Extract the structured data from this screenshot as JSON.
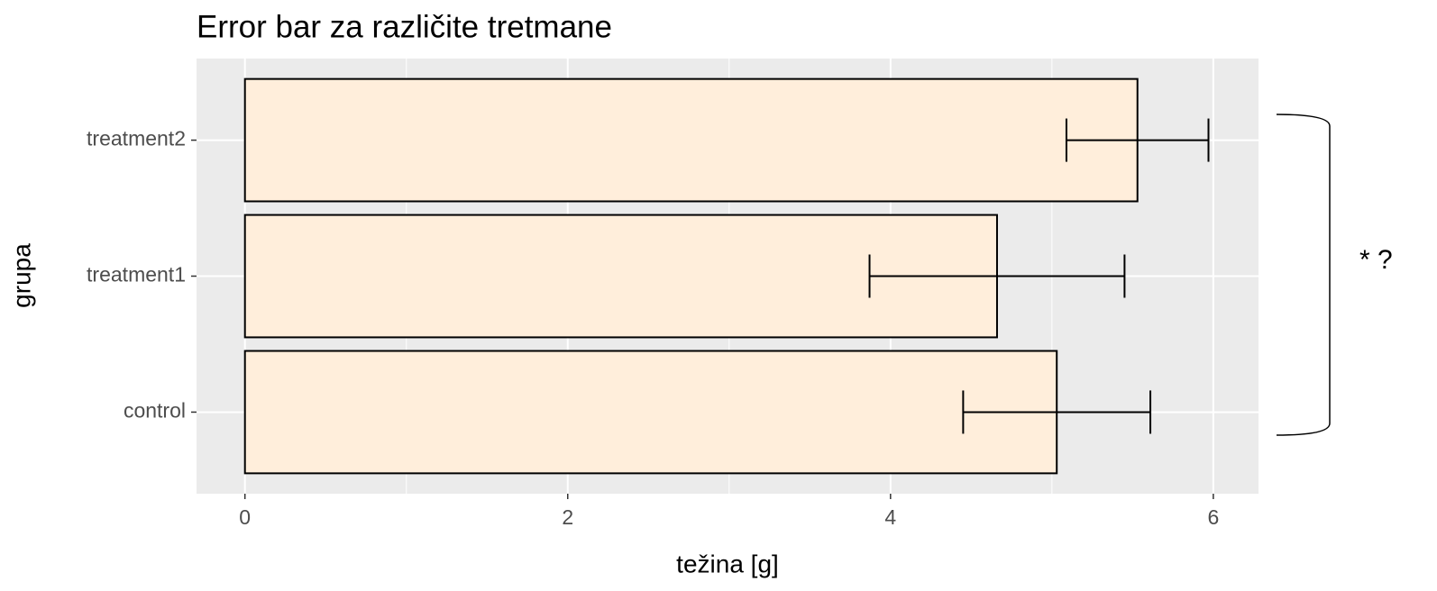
{
  "chart_data": {
    "type": "barh_error",
    "title": "Error bar za različite tretmane",
    "xlabel": "težina [g]",
    "ylabel": "grupa",
    "annotation": "* ?",
    "categories": [
      "control",
      "treatment1",
      "treatment2"
    ],
    "values": [
      5.03,
      4.66,
      5.53
    ],
    "errors": [
      0.58,
      0.79,
      0.44
    ],
    "color": "#ffeedb",
    "xlim": [
      -0.3,
      6.28
    ],
    "xticks": [
      0,
      2,
      4,
      6
    ],
    "xminorticks": [
      1,
      3,
      5
    ],
    "grid": true
  }
}
